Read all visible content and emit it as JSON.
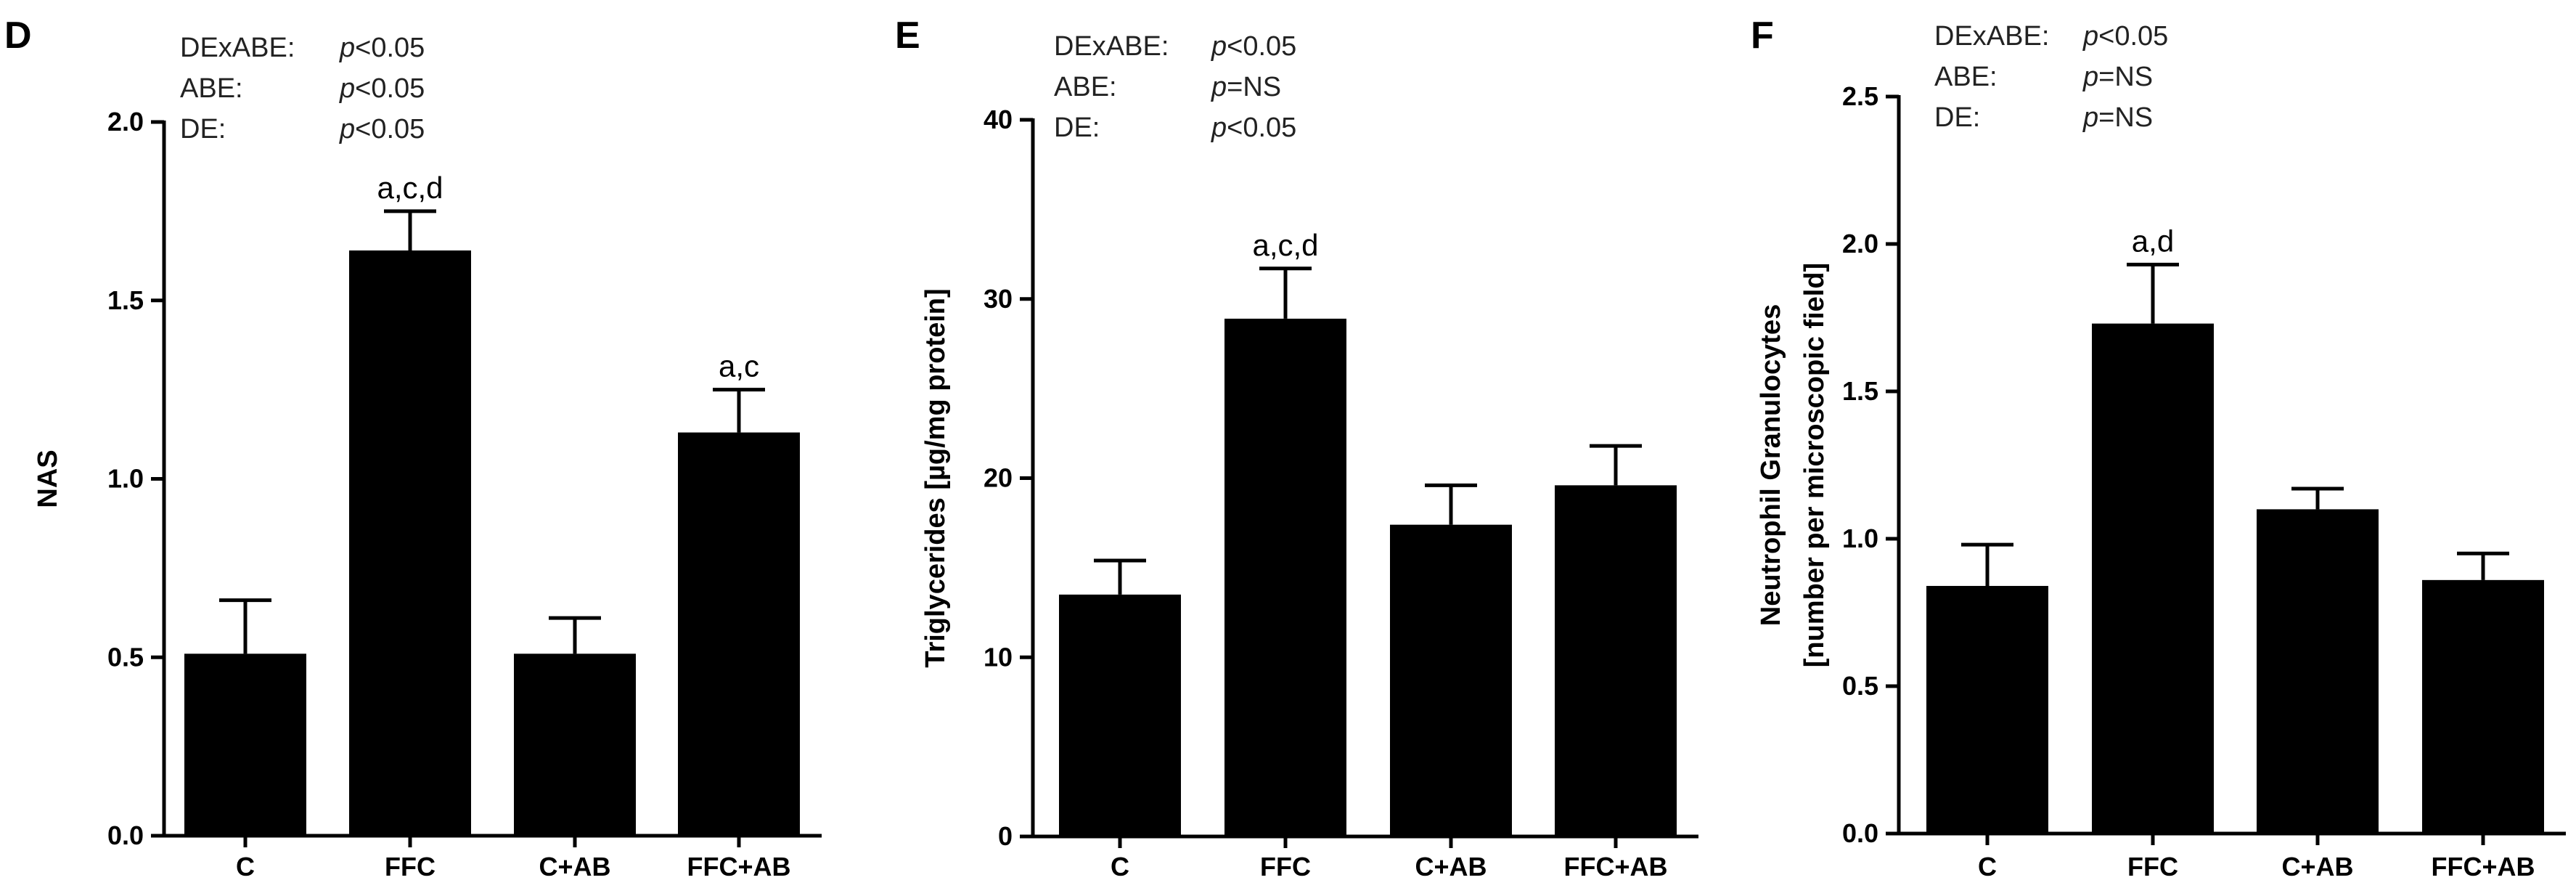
{
  "chart_data": [
    {
      "type": "bar",
      "panel": "D",
      "ylabel": "NAS",
      "ylabel2": "",
      "ylim": [
        0,
        2.0
      ],
      "yticks": [
        0.0,
        0.5,
        1.0,
        1.5,
        2.0
      ],
      "ytick_labels": [
        "0.0",
        "0.5",
        "1.0",
        "1.5",
        "2.0"
      ],
      "categories": [
        "C",
        "FFC",
        "C+AB",
        "FFC+AB"
      ],
      "values": [
        0.51,
        1.64,
        0.51,
        1.13
      ],
      "errors": [
        0.15,
        0.11,
        0.1,
        0.12
      ],
      "annotations": [
        "",
        "a,c,d",
        "",
        "a,c"
      ],
      "stats": [
        {
          "name": "DExABE:",
          "p": "p",
          "rest": "<0.05"
        },
        {
          "name": "ABE:",
          "p": "p",
          "rest": "<0.05"
        },
        {
          "name": "DE:",
          "p": "p",
          "rest": "<0.05"
        }
      ]
    },
    {
      "type": "bar",
      "panel": "E",
      "ylabel": "Triglycerides [µg/mg protein]",
      "ylabel2": "",
      "ylim": [
        0,
        40
      ],
      "yticks": [
        0,
        10,
        20,
        30,
        40
      ],
      "ytick_labels": [
        "0",
        "10",
        "20",
        "30",
        "40"
      ],
      "categories": [
        "C",
        "FFC",
        "C+AB",
        "FFC+AB"
      ],
      "values": [
        13.5,
        28.9,
        17.4,
        19.6
      ],
      "errors": [
        1.9,
        2.8,
        2.2,
        2.2
      ],
      "annotations": [
        "",
        "a,c,d",
        "",
        ""
      ],
      "stats": [
        {
          "name": "DExABE:",
          "p": "p",
          "rest": "<0.05"
        },
        {
          "name": "ABE:",
          "p": "p",
          "rest": "=NS"
        },
        {
          "name": "DE:",
          "p": "p",
          "rest": "<0.05"
        }
      ]
    },
    {
      "type": "bar",
      "panel": "F",
      "ylabel": "Neutrophil Granulocytes",
      "ylabel2": "[number per microscopic field]",
      "ylim": [
        0,
        2.5
      ],
      "yticks": [
        0.0,
        0.5,
        1.0,
        1.5,
        2.0,
        2.5
      ],
      "ytick_labels": [
        "0.0",
        "0.5",
        "1.0",
        "1.5",
        "2.0",
        "2.5"
      ],
      "categories": [
        "C",
        "FFC",
        "C+AB",
        "FFC+AB"
      ],
      "values": [
        0.84,
        1.73,
        1.1,
        0.86
      ],
      "errors": [
        0.14,
        0.2,
        0.07,
        0.09
      ],
      "annotations": [
        "",
        "a,d",
        "",
        ""
      ],
      "stats": [
        {
          "name": "DExABE:",
          "p": "p",
          "rest": "<0.05"
        },
        {
          "name": "ABE:",
          "p": "p",
          "rest": "=NS"
        },
        {
          "name": "DE:",
          "p": "p",
          "rest": "=NS"
        }
      ]
    }
  ]
}
